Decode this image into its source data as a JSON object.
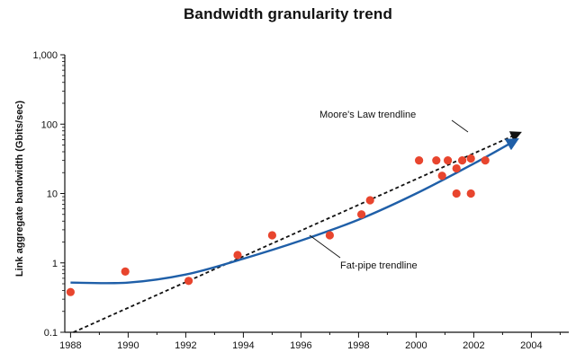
{
  "chart_data": {
    "type": "scatter",
    "title": "Bandwidth granularity trend",
    "ylabel": "Link aggregate bandwidth (Gbits/sec)",
    "xlabel": "",
    "xlim": [
      1987.8,
      2005.3
    ],
    "ylim": [
      0.1,
      1000
    ],
    "yscale": "log",
    "x_ticks": [
      1988,
      1990,
      1992,
      1994,
      1996,
      1998,
      2000,
      2002,
      2004
    ],
    "x_tick_labels": [
      "1988",
      "1990",
      "1992",
      "1994",
      "1996",
      "1998",
      "2000",
      "2002",
      "2004"
    ],
    "y_ticks": [
      0.1,
      1,
      10,
      100,
      1000
    ],
    "y_tick_labels": [
      "0.1",
      "1",
      "10",
      "100",
      "1,000"
    ],
    "grid": false,
    "points": [
      {
        "x": 1988.0,
        "y": 0.38
      },
      {
        "x": 1989.9,
        "y": 0.75
      },
      {
        "x": 1992.1,
        "y": 0.55
      },
      {
        "x": 1993.8,
        "y": 1.3
      },
      {
        "x": 1995.0,
        "y": 2.5
      },
      {
        "x": 1997.0,
        "y": 2.5
      },
      {
        "x": 1998.1,
        "y": 5.0
      },
      {
        "x": 1998.4,
        "y": 8.0
      },
      {
        "x": 2000.1,
        "y": 30
      },
      {
        "x": 2000.7,
        "y": 30
      },
      {
        "x": 2000.9,
        "y": 18
      },
      {
        "x": 2001.1,
        "y": 30
      },
      {
        "x": 2001.4,
        "y": 23
      },
      {
        "x": 2001.4,
        "y": 10
      },
      {
        "x": 2001.6,
        "y": 30
      },
      {
        "x": 2001.9,
        "y": 32
      },
      {
        "x": 2001.9,
        "y": 10
      },
      {
        "x": 2002.4,
        "y": 30
      }
    ],
    "trendlines": [
      {
        "label": "Moore's Law trendline",
        "style": "dashed",
        "color": "#111111",
        "points": [
          {
            "x": 1988.1,
            "y": 0.1
          },
          {
            "x": 2003.6,
            "y": 75
          }
        ]
      },
      {
        "label": "Fat-pipe trendline",
        "style": "solid",
        "color": "#1f5fa8",
        "points": [
          {
            "x": 1988.0,
            "y": 0.52
          },
          {
            "x": 1990.0,
            "y": 0.52
          },
          {
            "x": 1992.0,
            "y": 0.68
          },
          {
            "x": 1994.0,
            "y": 1.15
          },
          {
            "x": 1996.0,
            "y": 2.1
          },
          {
            "x": 1998.0,
            "y": 4.2
          },
          {
            "x": 2000.0,
            "y": 10
          },
          {
            "x": 2002.0,
            "y": 27
          },
          {
            "x": 2003.5,
            "y": 60
          }
        ]
      }
    ],
    "point_color": "#e8452e"
  }
}
